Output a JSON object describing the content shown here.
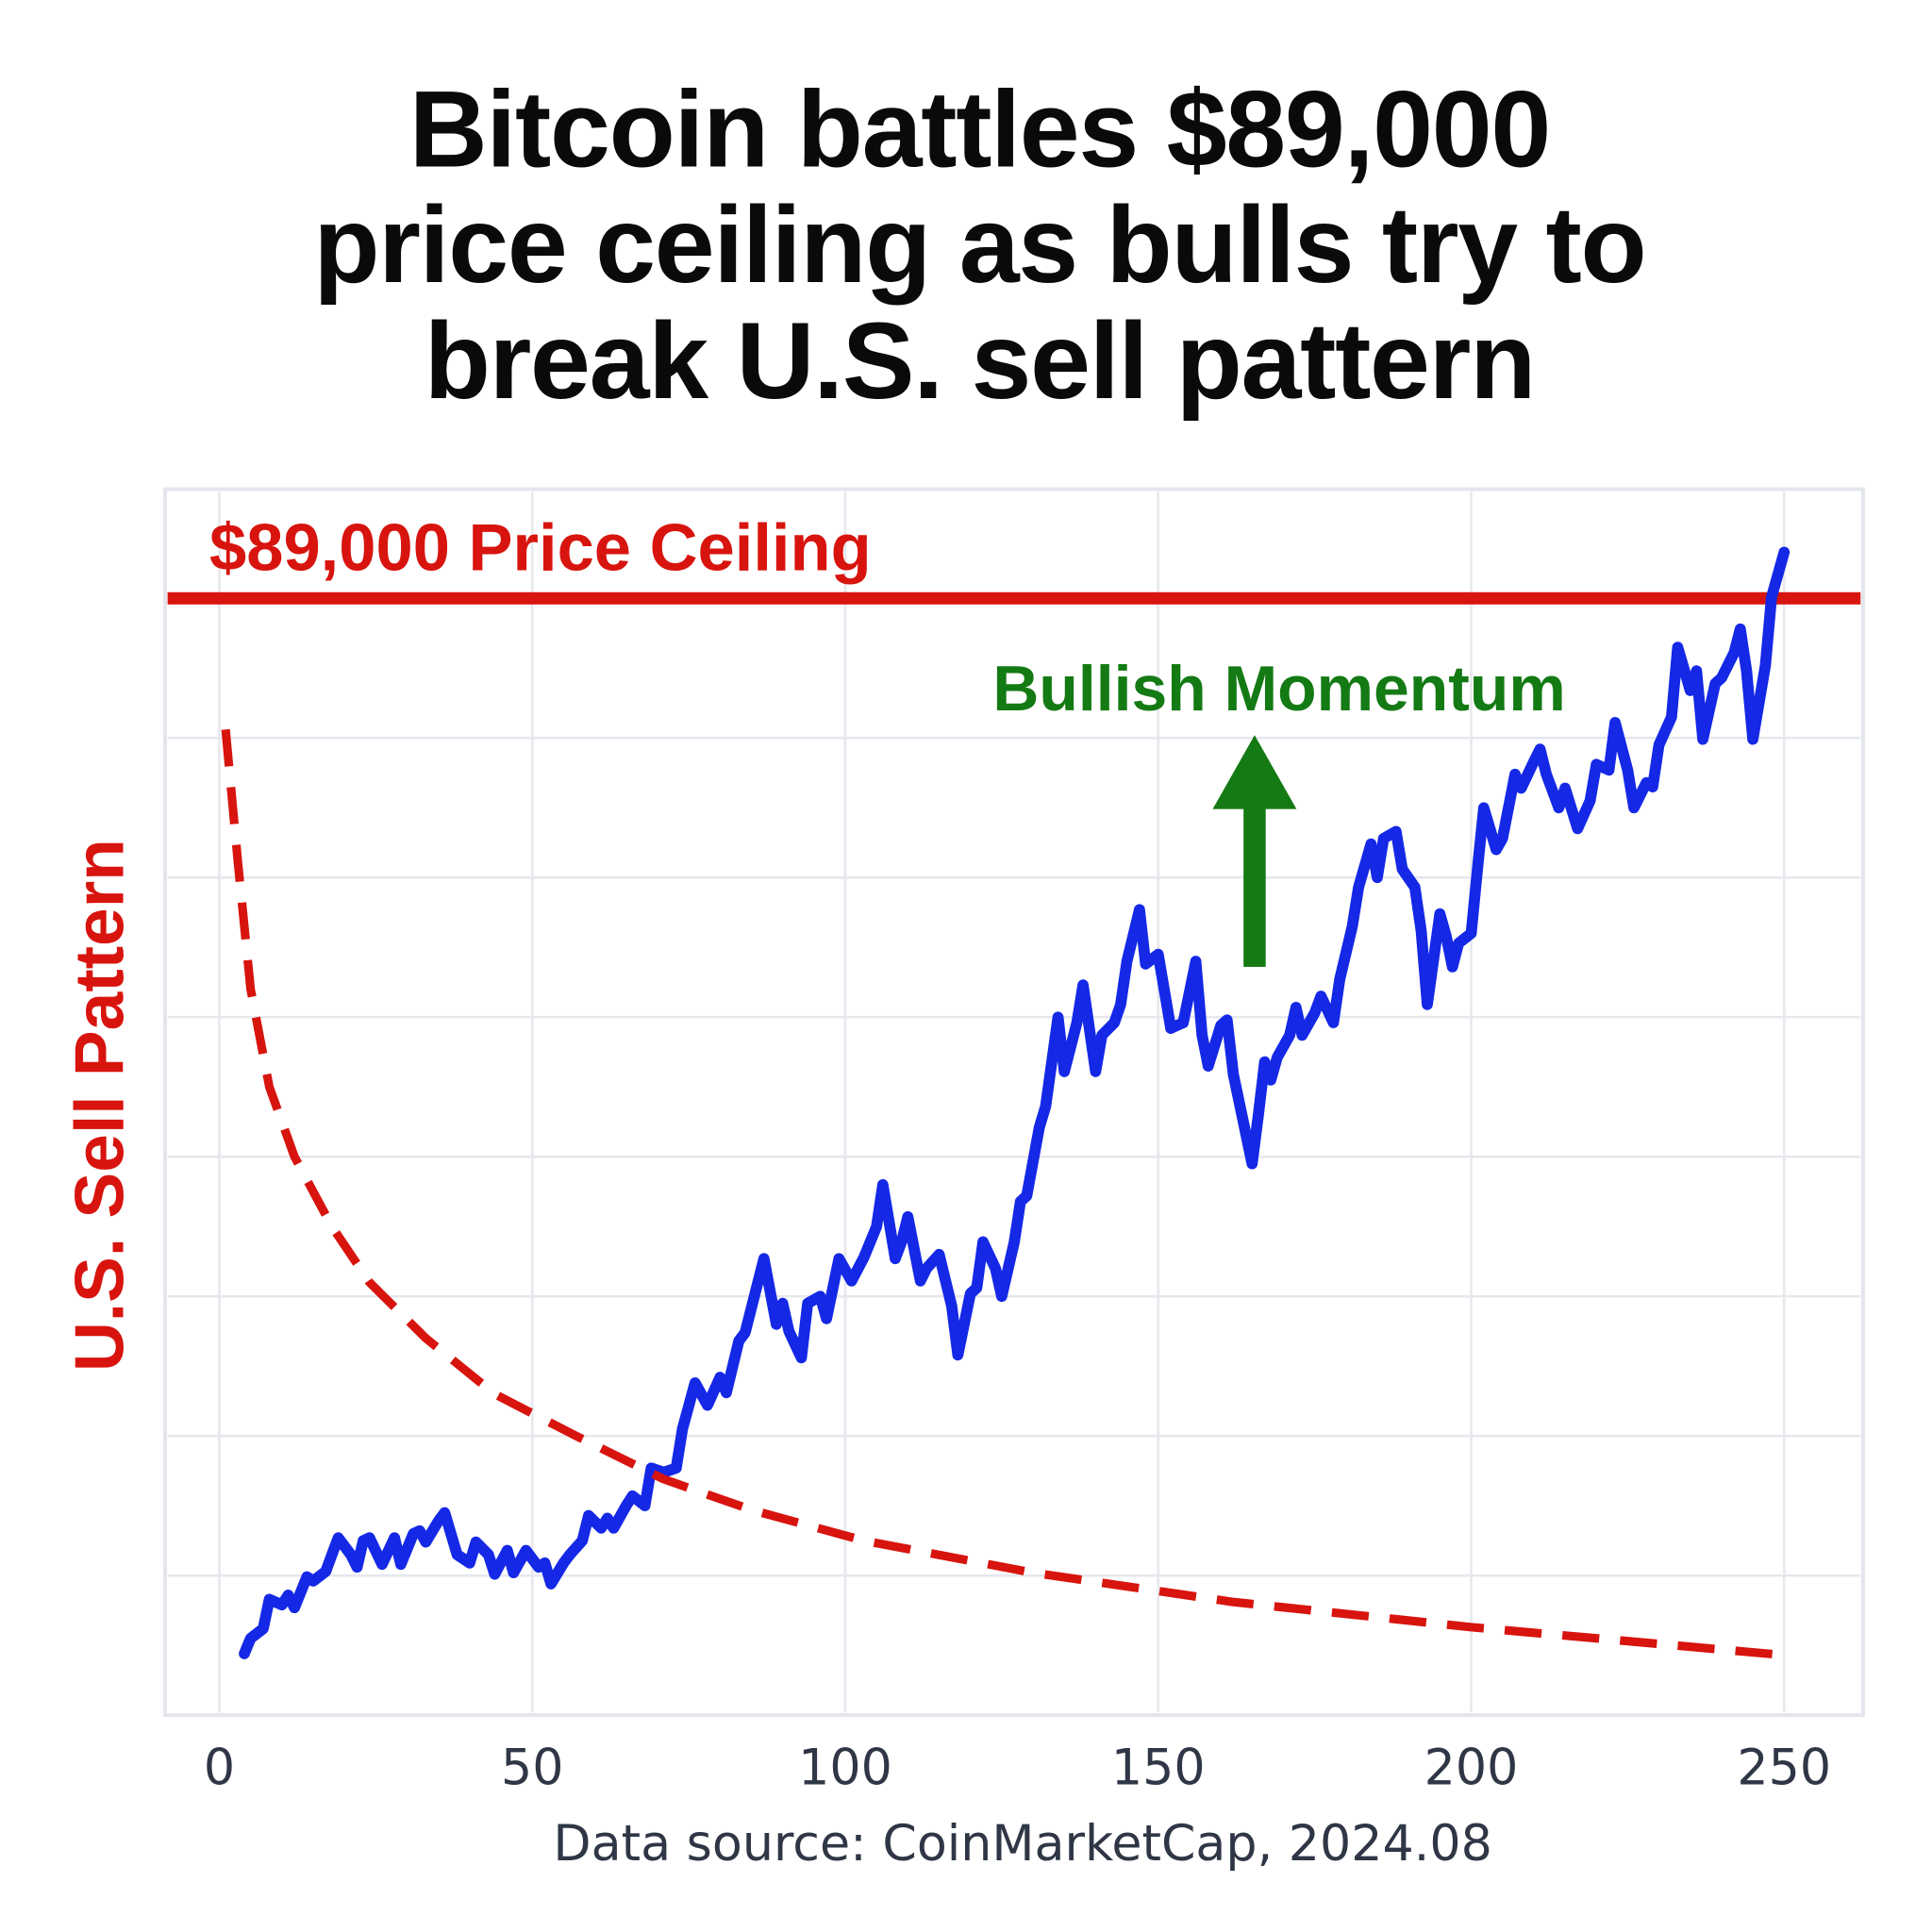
{
  "chart_data": {
    "type": "line",
    "title": "Bitcoin battles $89,000 price ceiling as bulls try to break U.S. sell pattern",
    "title_lines": [
      "Bitcoin battles $89,000",
      "price ceiling as bulls try to",
      "break U.S. sell pattern"
    ],
    "xlabel": "",
    "ylabel": "U.S. Sell Pattern",
    "xlim": [
      0,
      250
    ],
    "ylim": [
      0,
      8.78
    ],
    "x_ticks": [
      "0",
      "50",
      "100",
      "150",
      "200",
      "250"
    ],
    "y_ticks_shown": false,
    "grid": true,
    "source": "Data source: CoinMarketCap, 2024.08",
    "colors": {
      "price": "#1428e6",
      "sell_pattern": "#d8140e",
      "ceiling": "#d8140e",
      "momentum": "#147a14",
      "grid": "#e6e8ee"
    },
    "ceiling": {
      "label": "$89,000 Price Ceiling",
      "y": 8.0
    },
    "annotation": {
      "label": "Bullish Momentum",
      "x": 165.4,
      "y_from": 5.36,
      "y_to": 7.02
    },
    "series": [
      {
        "style": "solid",
        "x": [
          4,
          5,
          7,
          8,
          10,
          11,
          12,
          14,
          15,
          17,
          18,
          19,
          21,
          22,
          23,
          24,
          26,
          28,
          29,
          31,
          32,
          33,
          35,
          36,
          38,
          40,
          41,
          43,
          44,
          46,
          47,
          49,
          51,
          52,
          53,
          55,
          56,
          58,
          59,
          61,
          62,
          63,
          65,
          66,
          68,
          69,
          71,
          73,
          74,
          76,
          78,
          80,
          81,
          83,
          84,
          87,
          89,
          90,
          91,
          93,
          94,
          96,
          97,
          99,
          101,
          103,
          105,
          106,
          108,
          109,
          110,
          112,
          113,
          115,
          117,
          118,
          120,
          121,
          122,
          124,
          125,
          127,
          128,
          129,
          131,
          132,
          134,
          135,
          137,
          138,
          140,
          141,
          143,
          144,
          145,
          147,
          148,
          150,
          152,
          154,
          156,
          157,
          158,
          160,
          161,
          162,
          165,
          166,
          167,
          168,
          169,
          171,
          172,
          173,
          175,
          176,
          178,
          179,
          181,
          182,
          184,
          185,
          186,
          188,
          189,
          191,
          192,
          193,
          195,
          196,
          197,
          198,
          200,
          201,
          202,
          204,
          205,
          207,
          208,
          210,
          211,
          212,
          214,
          215,
          217,
          219,
          220,
          222,
          223,
          225,
          226,
          228,
          229,
          230,
          232,
          233,
          235,
          236,
          237,
          239,
          240,
          242,
          243,
          244,
          245,
          247,
          248,
          250
        ],
        "y": [
          0.44,
          0.55,
          0.62,
          0.83,
          0.79,
          0.86,
          0.77,
          0.99,
          0.96,
          1.03,
          1.15,
          1.27,
          1.15,
          1.06,
          1.25,
          1.27,
          1.08,
          1.27,
          1.08,
          1.3,
          1.32,
          1.24,
          1.39,
          1.45,
          1.15,
          1.09,
          1.24,
          1.15,
          1.01,
          1.18,
          1.02,
          1.18,
          1.06,
          1.09,
          0.94,
          1.09,
          1.15,
          1.25,
          1.43,
          1.34,
          1.41,
          1.34,
          1.5,
          1.57,
          1.5,
          1.77,
          1.74,
          1.77,
          2.05,
          2.38,
          2.22,
          2.42,
          2.31,
          2.68,
          2.74,
          3.27,
          2.8,
          2.95,
          2.75,
          2.56,
          2.95,
          3.0,
          2.84,
          3.27,
          3.11,
          3.28,
          3.5,
          3.8,
          3.27,
          3.39,
          3.57,
          3.11,
          3.2,
          3.3,
          2.93,
          2.58,
          3.02,
          3.06,
          3.39,
          3.2,
          3.0,
          3.39,
          3.68,
          3.72,
          4.21,
          4.36,
          5.0,
          4.61,
          4.96,
          5.23,
          4.61,
          4.87,
          4.96,
          5.09,
          5.4,
          5.77,
          5.38,
          5.45,
          4.92,
          4.96,
          5.4,
          4.87,
          4.65,
          4.94,
          4.98,
          4.59,
          3.95,
          4.3,
          4.68,
          4.55,
          4.71,
          4.87,
          5.07,
          4.87,
          5.03,
          5.15,
          4.96,
          5.27,
          5.65,
          5.93,
          6.24,
          6.0,
          6.28,
          6.33,
          6.06,
          5.93,
          5.62,
          5.09,
          5.74,
          5.58,
          5.36,
          5.53,
          5.6,
          6.06,
          6.5,
          6.2,
          6.28,
          6.74,
          6.64,
          6.83,
          6.92,
          6.74,
          6.5,
          6.64,
          6.35,
          6.55,
          6.81,
          6.77,
          7.11,
          6.77,
          6.5,
          6.68,
          6.65,
          6.95,
          7.15,
          7.65,
          7.34,
          7.48,
          6.99,
          7.39,
          7.43,
          7.61,
          7.78,
          7.48,
          6.99,
          7.52,
          8.01,
          8.33
        ]
      },
      {
        "name": "U.S. Sell Pattern",
        "style": "dashed",
        "x": [
          1,
          3,
          5,
          8,
          12,
          18,
          24,
          33,
          44,
          57,
          71,
          85,
          103,
          130,
          162,
          200,
          250
        ],
        "y": [
          7.06,
          6.1,
          5.2,
          4.5,
          4.0,
          3.5,
          3.1,
          2.7,
          2.3,
          2.0,
          1.69,
          1.47,
          1.25,
          1.02,
          0.81,
          0.63,
          0.43
        ]
      }
    ]
  }
}
